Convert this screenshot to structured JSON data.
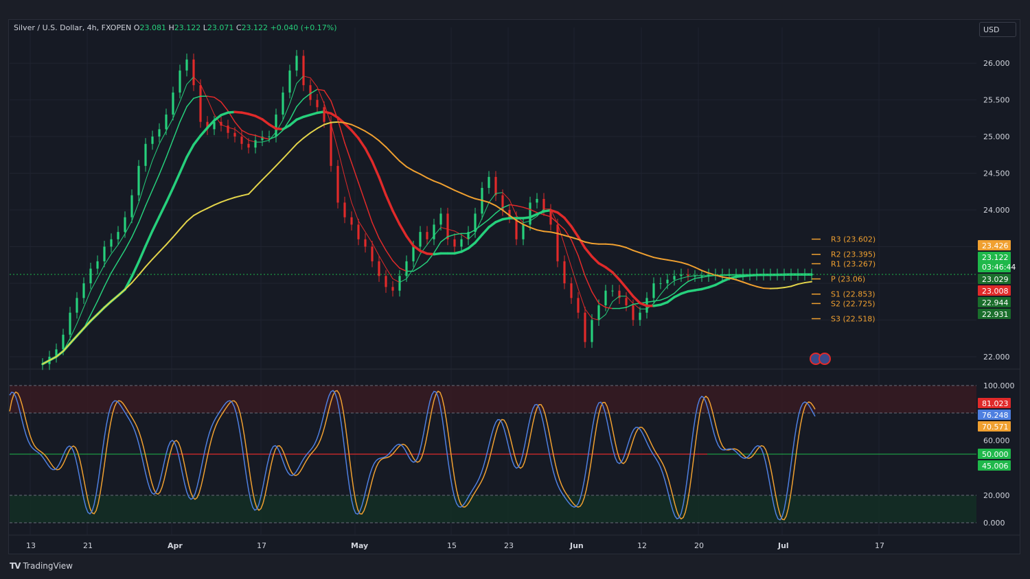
{
  "legend": {
    "symbol": "Silver / U.S. Dollar, 4h, FXOPEN",
    "o_label": "O",
    "o": "23.081",
    "h_label": "H",
    "h": "23.122",
    "l_label": "L",
    "l": "23.071",
    "c_label": "C",
    "c": "23.122",
    "change": "+0.040 (+0.17%)"
  },
  "currency": "USD",
  "brand": "TradingView",
  "colors": {
    "bull": "#26d07c",
    "bear": "#e02a2a",
    "yellow": "#e3d44a",
    "orange": "#f0a030",
    "stoch_k": "#4e7fe0",
    "stoch_d": "#f0a030",
    "pivot": "#f0a030"
  },
  "chart_data": [
    {
      "type": "line",
      "panel": "price",
      "ylim": [
        21.85,
        26.3
      ],
      "y_ticks": [
        "26.000",
        "25.500",
        "25.000",
        "24.500",
        "24.000",
        "22.000"
      ],
      "x_ticks": [
        "13",
        "21",
        "Apr",
        "17",
        "May",
        "15",
        "23",
        "Jun",
        "12",
        "20",
        "Jul",
        "17"
      ],
      "price_series": [
        {
          "name": "price",
          "x": [
            0,
            2,
            4,
            6,
            8,
            10,
            12,
            14,
            16,
            18,
            20,
            22,
            24,
            26,
            28,
            30,
            32,
            34,
            36,
            38,
            40,
            42,
            44,
            46,
            48,
            50,
            52,
            54,
            56,
            58,
            60,
            62,
            64,
            66,
            68,
            70,
            72,
            74,
            76,
            78,
            80,
            82,
            84,
            86,
            88,
            90,
            92,
            94,
            96,
            98,
            100,
            102,
            104,
            106,
            108,
            110,
            112,
            114,
            116,
            118,
            120,
            122,
            124,
            126,
            128,
            130,
            132,
            134,
            136,
            138,
            140,
            142,
            144,
            146,
            148,
            150,
            152,
            154,
            156,
            158,
            160,
            162,
            164,
            166,
            168,
            170,
            172,
            174,
            176,
            178,
            180,
            182,
            184,
            186,
            188,
            190,
            192,
            194,
            196,
            198,
            200,
            202,
            204,
            206,
            208,
            210,
            212,
            214,
            216,
            218,
            220,
            222,
            224,
            226,
            228,
            230
          ],
          "y": [
            21.9,
            22.0,
            22.1,
            22.3,
            22.6,
            22.8,
            23.0,
            23.2,
            23.3,
            23.5,
            23.6,
            23.7,
            23.9,
            24.2,
            24.6,
            24.9,
            25.0,
            25.1,
            25.3,
            25.6,
            25.9,
            26.05,
            25.7,
            25.2,
            25.1,
            25.2,
            25.15,
            25.05,
            25.0,
            24.9,
            24.85,
            24.95,
            25.0,
            25.0,
            25.3,
            25.6,
            25.9,
            26.1,
            25.7,
            25.5,
            25.4,
            25.2,
            24.6,
            24.1,
            23.9,
            23.8,
            23.6,
            23.5,
            23.3,
            23.1,
            22.95,
            22.9,
            23.1,
            23.3,
            23.5,
            23.7,
            23.6,
            23.8,
            23.95,
            23.6,
            23.5,
            23.6,
            23.7,
            23.95,
            24.3,
            24.45,
            24.2,
            24.0,
            23.9,
            23.6,
            23.8,
            24.1,
            24.15,
            24.0,
            23.8,
            23.3,
            23.0,
            22.8,
            22.6,
            22.2,
            22.5,
            22.7,
            22.9,
            22.9,
            22.8,
            22.7,
            22.5,
            22.6,
            22.8,
            23.0,
            23.0,
            23.05,
            23.1,
            23.12,
            23.1,
            23.1,
            23.1,
            23.12,
            23.12,
            23.12,
            23.12,
            23.12,
            23.12,
            23.12,
            23.12,
            23.12,
            23.12,
            23.12,
            23.12,
            23.12,
            23.12,
            23.12,
            23.12,
            23.12,
            23.12,
            23.12
          ]
        }
      ],
      "pivots": [
        {
          "label": "R3 (23.602)",
          "value": 23.602
        },
        {
          "label": "R2 (23.395)",
          "value": 23.395
        },
        {
          "label": "R1 (23.267)",
          "value": 23.267
        },
        {
          "label": "P (23.06)",
          "value": 23.06
        },
        {
          "label": "S1 (22.853)",
          "value": 22.853
        },
        {
          "label": "S2 (22.725)",
          "value": 22.725
        },
        {
          "label": "S3 (22.518)",
          "value": 22.518
        }
      ],
      "price_badges": [
        {
          "text": "23.426",
          "color": "#f0a030",
          "value": 23.426
        },
        {
          "text": "23.122",
          "text2": "03:46:44",
          "color": "#1fb84a",
          "value": 23.122
        },
        {
          "text": "23.029",
          "color": "#1a6e2c",
          "value": 23.029
        },
        {
          "text": "23.008",
          "color": "#e02a2a",
          "value": 23.008
        },
        {
          "text": "22.944",
          "color": "#1a6e2c",
          "value": 22.944
        },
        {
          "text": "22.931",
          "color": "#1a6e2c",
          "value": 22.931
        }
      ]
    },
    {
      "type": "line",
      "panel": "stochastic",
      "ylim": [
        0,
        100
      ],
      "y_ticks": [
        "100.000",
        "80.000",
        "60.000",
        "20.000",
        "0.000"
      ],
      "levels": [
        100,
        80,
        50,
        20,
        0
      ],
      "stoch_badges": [
        {
          "text": "81.023",
          "color": "#e02a2a",
          "value": 81.023
        },
        {
          "text": "76.248",
          "color": "#4e7fe0",
          "value": 76.248
        },
        {
          "text": "70.571",
          "color": "#f0a030",
          "value": 70.571
        },
        {
          "text": "50.000",
          "color": "#1fb84a",
          "value": 50
        },
        {
          "text": "45.006",
          "color": "#1fb84a",
          "value": 45.006
        }
      ]
    }
  ]
}
